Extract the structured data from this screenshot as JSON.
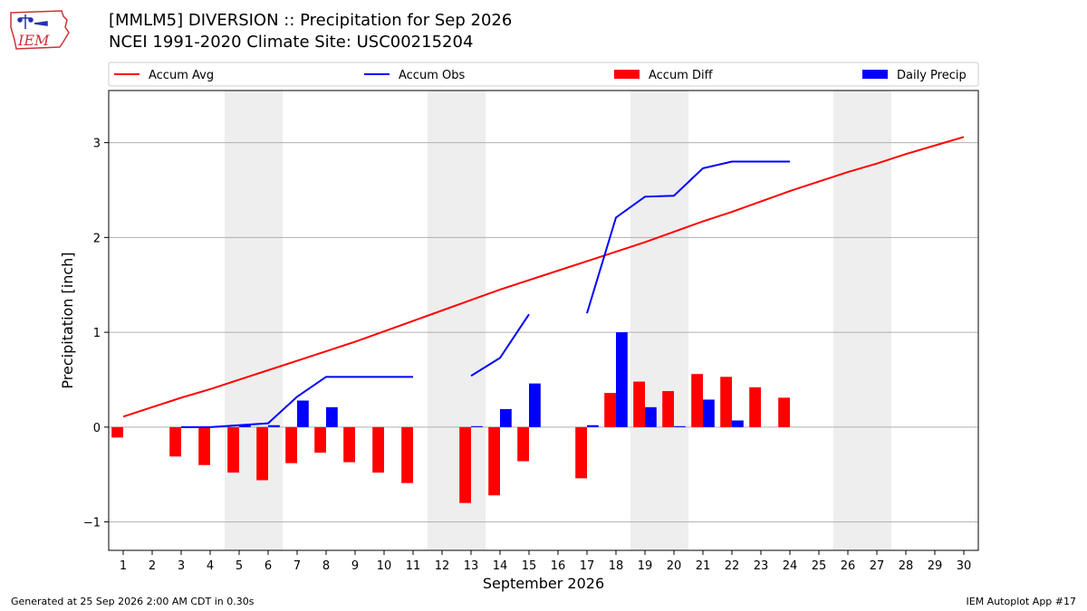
{
  "header": {
    "title_line1": "[MMLM5] DIVERSION :: Precipitation for Sep 2026",
    "title_line2": "NCEI 1991-2020 Climate Site: USC00215204",
    "logo_text": "IEM"
  },
  "footer": {
    "left": "Generated at 25 Sep 2026 2:00 AM CDT in 0.30s",
    "right": "IEM Autoplot App #17"
  },
  "colors": {
    "accum_avg": "#ff0000",
    "accum_obs": "#0000ff",
    "accum_diff": "#ff0000",
    "daily_precip": "#0000ff",
    "weekend_shade": "#eeeeee",
    "grid": "#b0b0b0"
  },
  "chart_data": {
    "type": "bar",
    "xlabel": "September 2026",
    "ylabel": "Precipitation [inch]",
    "xlim": [
      0.5,
      30.5
    ],
    "ylim": [
      -1.3,
      3.55
    ],
    "x_ticks": [
      1,
      2,
      3,
      4,
      5,
      6,
      7,
      8,
      9,
      10,
      11,
      12,
      13,
      14,
      15,
      16,
      17,
      18,
      19,
      20,
      21,
      22,
      23,
      24,
      25,
      26,
      27,
      28,
      29,
      30
    ],
    "y_ticks": [
      -1,
      0,
      1,
      2,
      3
    ],
    "y_tick_labels": [
      "−1",
      "0",
      "1",
      "2",
      "3"
    ],
    "grid": "horizontal",
    "legend_position": "top",
    "shaded_day_ranges": [
      [
        5,
        6
      ],
      [
        12,
        13
      ],
      [
        19,
        20
      ],
      [
        26,
        27
      ]
    ],
    "series": [
      {
        "name": "Accum Avg",
        "kind": "line",
        "x": [
          1,
          2,
          3,
          4,
          5,
          6,
          7,
          8,
          9,
          10,
          11,
          12,
          13,
          14,
          15,
          16,
          17,
          18,
          19,
          20,
          21,
          22,
          23,
          24,
          25,
          26,
          27,
          28,
          29,
          30
        ],
        "values": [
          0.11,
          0.21,
          0.31,
          0.4,
          0.5,
          0.6,
          0.7,
          0.8,
          0.9,
          1.01,
          1.12,
          1.23,
          1.34,
          1.45,
          1.55,
          1.65,
          1.75,
          1.85,
          1.95,
          2.06,
          2.17,
          2.27,
          2.38,
          2.49,
          2.59,
          2.69,
          2.78,
          2.88,
          2.97,
          3.06
        ]
      },
      {
        "name": "Accum Obs",
        "kind": "line",
        "segments": [
          {
            "x": [
              3,
              4,
              5,
              6,
              7,
              8,
              9,
              10,
              11
            ],
            "values": [
              0.0,
              0.0,
              0.02,
              0.04,
              0.32,
              0.53,
              0.53,
              0.53,
              0.53
            ]
          },
          {
            "x": [
              13,
              14,
              15
            ],
            "values": [
              0.54,
              0.73,
              1.19
            ]
          },
          {
            "x": [
              17,
              18,
              19,
              20,
              21,
              22,
              23,
              24
            ],
            "values": [
              1.2,
              2.21,
              2.43,
              2.44,
              2.73,
              2.8,
              2.8,
              2.8
            ]
          }
        ]
      },
      {
        "name": "Accum Diff",
        "kind": "bar",
        "x": [
          1,
          3,
          4,
          5,
          6,
          7,
          8,
          9,
          10,
          11,
          13,
          14,
          15,
          17,
          18,
          19,
          20,
          21,
          22,
          23,
          24
        ],
        "values": [
          -0.11,
          -0.31,
          -0.4,
          -0.48,
          -0.56,
          -0.38,
          -0.27,
          -0.37,
          -0.48,
          -0.59,
          -0.8,
          -0.72,
          -0.36,
          -0.54,
          0.36,
          0.48,
          0.38,
          0.56,
          0.53,
          0.42,
          0.31
        ]
      },
      {
        "name": "Daily Precip",
        "kind": "bar",
        "x": [
          5,
          6,
          7,
          8,
          13,
          14,
          15,
          17,
          18,
          19,
          20,
          21,
          22
        ],
        "values": [
          0.02,
          0.02,
          0.28,
          0.21,
          0.01,
          0.19,
          0.46,
          0.02,
          1.0,
          0.21,
          0.01,
          0.29,
          0.07
        ]
      }
    ]
  }
}
